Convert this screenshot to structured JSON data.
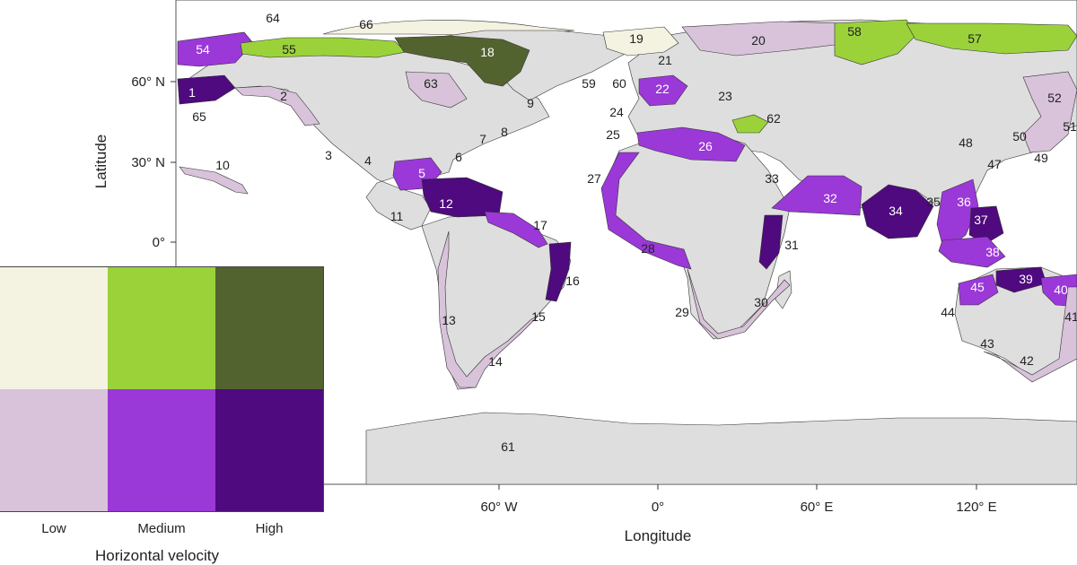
{
  "colors": {
    "land": "#dedede",
    "low_low": "#f4f2e0",
    "low_medium": "#9bd23a",
    "low_high": "#536330",
    "high_low": "#d8c3da",
    "high_medium": "#9b38d8",
    "high_high": "#4e0a7e",
    "white_region": "#ffffff",
    "coast": "#333333"
  },
  "axes": {
    "ylabel": "Latitude",
    "xlabel": "Longitude",
    "lat_ticks": [
      "60° N",
      "30° N",
      "0°"
    ],
    "lon_ticks": [
      "60° W",
      "0°",
      "60° E",
      "120° E"
    ]
  },
  "legend": {
    "x_title": "Horizontal velocity",
    "x_ticks": [
      "Low",
      "Medium",
      "High"
    ]
  },
  "regions": [
    {
      "id": "1",
      "fill": "high_high",
      "light": true
    },
    {
      "id": "2",
      "fill": "high_low",
      "light": false
    },
    {
      "id": "3",
      "fill": "white_region",
      "light": false
    },
    {
      "id": "4",
      "fill": "high_low",
      "light": false
    },
    {
      "id": "5",
      "fill": "high_medium",
      "light": true
    },
    {
      "id": "6",
      "fill": "high_low",
      "light": false
    },
    {
      "id": "7",
      "fill": "high_low",
      "light": false
    },
    {
      "id": "8",
      "fill": "high_low",
      "light": false
    },
    {
      "id": "9",
      "fill": "high_low",
      "light": false
    },
    {
      "id": "10",
      "fill": "high_low",
      "light": false
    },
    {
      "id": "11",
      "fill": "high_low",
      "light": false
    },
    {
      "id": "12",
      "fill": "high_high",
      "light": true
    },
    {
      "id": "13",
      "fill": "high_low",
      "light": false
    },
    {
      "id": "14",
      "fill": "high_low",
      "light": false
    },
    {
      "id": "15",
      "fill": "high_low",
      "light": false
    },
    {
      "id": "16",
      "fill": "high_high",
      "light": false
    },
    {
      "id": "17",
      "fill": "high_medium",
      "light": false
    },
    {
      "id": "18",
      "fill": "low_high",
      "light": true
    },
    {
      "id": "19",
      "fill": "low_low",
      "light": false
    },
    {
      "id": "20",
      "fill": "high_low",
      "light": false
    },
    {
      "id": "21",
      "fill": "high_low",
      "light": false
    },
    {
      "id": "22",
      "fill": "high_medium",
      "light": true
    },
    {
      "id": "23",
      "fill": "high_low",
      "light": false
    },
    {
      "id": "24",
      "fill": "high_low",
      "light": false
    },
    {
      "id": "25",
      "fill": "high_low",
      "light": false
    },
    {
      "id": "26",
      "fill": "high_medium",
      "light": true
    },
    {
      "id": "27",
      "fill": "high_medium",
      "light": false
    },
    {
      "id": "28",
      "fill": "high_medium",
      "light": false
    },
    {
      "id": "29",
      "fill": "high_low",
      "light": false
    },
    {
      "id": "30",
      "fill": "high_low",
      "light": false
    },
    {
      "id": "31",
      "fill": "high_high",
      "light": false
    },
    {
      "id": "32",
      "fill": "high_medium",
      "light": true
    },
    {
      "id": "33",
      "fill": "high_low",
      "light": false
    },
    {
      "id": "34",
      "fill": "high_high",
      "light": true
    },
    {
      "id": "35",
      "fill": "high_medium",
      "light": false
    },
    {
      "id": "36",
      "fill": "high_medium",
      "light": true
    },
    {
      "id": "37",
      "fill": "high_high",
      "light": true
    },
    {
      "id": "38",
      "fill": "high_medium",
      "light": true
    },
    {
      "id": "39",
      "fill": "high_high",
      "light": true
    },
    {
      "id": "40",
      "fill": "high_medium",
      "light": true
    },
    {
      "id": "41",
      "fill": "high_low",
      "light": false
    },
    {
      "id": "42",
      "fill": "high_low",
      "light": false
    },
    {
      "id": "43",
      "fill": "high_low",
      "light": false
    },
    {
      "id": "44",
      "fill": "white_region",
      "light": false
    },
    {
      "id": "45",
      "fill": "high_medium",
      "light": true
    },
    {
      "id": "47",
      "fill": "high_low",
      "light": false
    },
    {
      "id": "48",
      "fill": "high_low",
      "light": false
    },
    {
      "id": "49",
      "fill": "high_low",
      "light": false
    },
    {
      "id": "50",
      "fill": "high_low",
      "light": false
    },
    {
      "id": "51",
      "fill": "high_low",
      "light": false
    },
    {
      "id": "52",
      "fill": "high_low",
      "light": false
    },
    {
      "id": "54",
      "fill": "high_medium",
      "light": true
    },
    {
      "id": "55",
      "fill": "low_medium",
      "light": false
    },
    {
      "id": "57",
      "fill": "low_medium",
      "light": false
    },
    {
      "id": "58",
      "fill": "low_medium",
      "light": false
    },
    {
      "id": "59",
      "fill": "high_low",
      "light": false
    },
    {
      "id": "60",
      "fill": "high_low",
      "light": false
    },
    {
      "id": "61",
      "fill": "white_region",
      "light": false
    },
    {
      "id": "62",
      "fill": "low_medium",
      "light": false
    },
    {
      "id": "63",
      "fill": "high_low",
      "light": false
    },
    {
      "id": "64",
      "fill": "low_low",
      "light": false
    },
    {
      "id": "65",
      "fill": "high_high",
      "light": false
    },
    {
      "id": "66",
      "fill": "low_low",
      "light": false
    }
  ]
}
